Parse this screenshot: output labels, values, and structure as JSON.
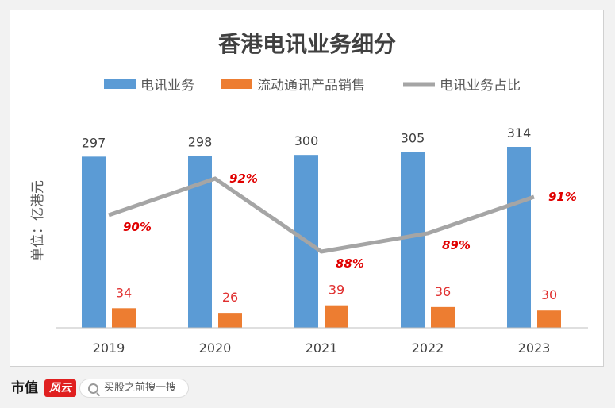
{
  "chart_data": {
    "type": "bar",
    "title": "香港电讯业务细分",
    "ylabel": "单位：亿港元",
    "xlabel": "",
    "categories": [
      "2019",
      "2020",
      "2021",
      "2022",
      "2023"
    ],
    "series": [
      {
        "name": "电讯业务",
        "type": "bar",
        "color": "#5b9bd5",
        "values": [
          297,
          298,
          300,
          305,
          314
        ],
        "labels": [
          "297",
          "298",
          "300",
          "305",
          "314"
        ]
      },
      {
        "name": "流动通讯产品销售",
        "type": "bar",
        "color": "#ed7d31",
        "values": [
          34,
          26,
          39,
          36,
          30
        ],
        "labels": [
          "34",
          "26",
          "39",
          "36",
          "30"
        ]
      },
      {
        "name": "电讯业务占比",
        "type": "line",
        "color": "#a5a5a5",
        "values": [
          90,
          92,
          88,
          89,
          91
        ],
        "labels": [
          "90%",
          "92%",
          "88%",
          "89%",
          "91%"
        ]
      }
    ],
    "legend_position": "top",
    "grid": false,
    "bar_label_color": "#404040",
    "orange_label_color": "#e03030",
    "line_label_color": "#e00000"
  },
  "footer": {
    "logo": "市值",
    "logo_mark": "风云",
    "search_placeholder": "买股之前搜一搜"
  }
}
